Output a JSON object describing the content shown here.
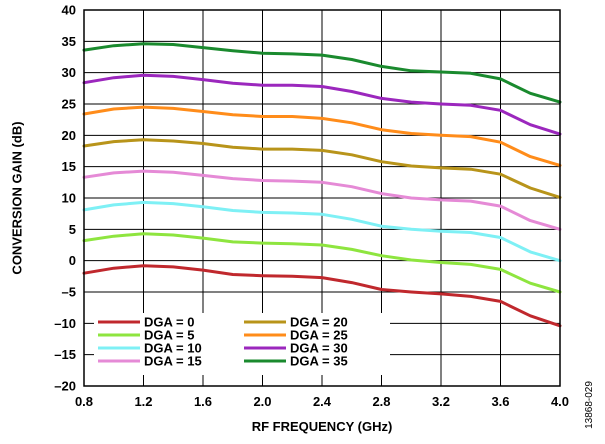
{
  "chart_data": {
    "type": "line",
    "xlabel": "RF FREQUENCY (GHz)",
    "ylabel": "CONVERSION GAIN (dB)",
    "xlim": [
      0.8,
      4.0
    ],
    "ylim": [
      -20,
      40
    ],
    "x_ticks": [
      "0.8",
      "1.2",
      "1.6",
      "2.0",
      "2.4",
      "2.8",
      "3.2",
      "3.6",
      "4.0"
    ],
    "y_ticks": [
      "40",
      "35",
      "30",
      "25",
      "20",
      "15",
      "10",
      "5",
      "0",
      "–5",
      "–10",
      "–15",
      "–20"
    ],
    "grid": true,
    "legend_position": "bottom-left",
    "x": [
      0.8,
      1.0,
      1.2,
      1.4,
      1.6,
      1.8,
      2.0,
      2.2,
      2.4,
      2.6,
      2.8,
      3.0,
      3.2,
      3.4,
      3.6,
      3.8,
      4.0
    ],
    "series": [
      {
        "name": "DGA = 0",
        "color": "#c0282d",
        "values": [
          -2.0,
          -1.2,
          -0.8,
          -1.0,
          -1.5,
          -2.2,
          -2.4,
          -2.5,
          -2.7,
          -3.5,
          -4.6,
          -5.0,
          -5.3,
          -5.7,
          -6.5,
          -8.8,
          -10.4
        ]
      },
      {
        "name": "DGA = 5",
        "color": "#8ee53f",
        "values": [
          3.2,
          3.9,
          4.3,
          4.1,
          3.6,
          3.0,
          2.8,
          2.7,
          2.5,
          1.8,
          0.8,
          0.1,
          -0.3,
          -0.6,
          -1.4,
          -3.6,
          -5.0
        ]
      },
      {
        "name": "DGA = 10",
        "color": "#7ef0f5",
        "values": [
          8.1,
          8.9,
          9.3,
          9.1,
          8.6,
          8.0,
          7.7,
          7.6,
          7.4,
          6.6,
          5.5,
          5.0,
          4.7,
          4.5,
          3.7,
          1.4,
          0.0
        ]
      },
      {
        "name": "DGA = 15",
        "color": "#e58ad6",
        "values": [
          13.3,
          14.0,
          14.3,
          14.1,
          13.6,
          13.1,
          12.8,
          12.7,
          12.5,
          11.8,
          10.7,
          10.0,
          9.7,
          9.5,
          8.7,
          6.4,
          5.0
        ]
      },
      {
        "name": "DGA = 20",
        "color": "#b8941a",
        "values": [
          18.3,
          19.0,
          19.3,
          19.1,
          18.7,
          18.1,
          17.8,
          17.8,
          17.6,
          16.9,
          15.8,
          15.1,
          14.8,
          14.6,
          13.8,
          11.6,
          10.1
        ]
      },
      {
        "name": "DGA = 25",
        "color": "#ff8c1a",
        "values": [
          23.4,
          24.2,
          24.5,
          24.3,
          23.8,
          23.3,
          23.0,
          23.0,
          22.7,
          22.0,
          20.9,
          20.3,
          20.0,
          19.8,
          18.9,
          16.6,
          15.2
        ]
      },
      {
        "name": "DGA = 30",
        "color": "#9b27bd",
        "values": [
          28.4,
          29.2,
          29.6,
          29.4,
          28.9,
          28.3,
          28.0,
          28.0,
          27.8,
          27.0,
          25.9,
          25.3,
          25.0,
          24.8,
          24.0,
          21.7,
          20.2
        ]
      },
      {
        "name": "DGA = 35",
        "color": "#1a8a2e",
        "values": [
          33.6,
          34.3,
          34.6,
          34.5,
          34.0,
          33.5,
          33.1,
          33.0,
          32.8,
          32.1,
          31.0,
          30.3,
          30.1,
          29.9,
          29.0,
          26.7,
          25.3
        ]
      }
    ]
  },
  "figure_id": "13868-029"
}
